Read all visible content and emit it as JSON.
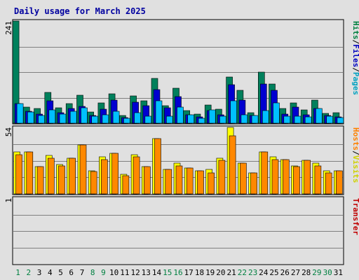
{
  "chart_data": {
    "type": "bar",
    "title": "Daily usage for March 2025",
    "days": [
      "1",
      "2",
      "3",
      "4",
      "5",
      "6",
      "7",
      "8",
      "9",
      "10",
      "11",
      "12",
      "13",
      "14",
      "15",
      "16",
      "17",
      "18",
      "19",
      "20",
      "21",
      "22",
      "23",
      "24",
      "25",
      "26",
      "27",
      "28",
      "29",
      "30",
      "31"
    ],
    "weekend_days": [
      "1",
      "2",
      "8",
      "9",
      "15",
      "16",
      "22",
      "23",
      "29",
      "30"
    ],
    "panels": [
      {
        "id": "pages",
        "ymax": 241,
        "ymax_label": "241",
        "side_label": [
          "Hits",
          "/",
          "Files",
          "/",
          "Pages"
        ],
        "side_colors": [
          "#008040",
          "#000000",
          "#0000c0",
          "#000000",
          "#00a0c0"
        ],
        "series": [
          {
            "key": "hits",
            "color": "#00805c",
            "values": [
              241,
              38,
              35,
              72,
              36,
              47,
              66,
              26,
              48,
              70,
              18,
              64,
              52,
              106,
              42,
              82,
              29,
              22,
              43,
              33,
              109,
              77,
              24,
              120,
              93,
              34,
              48,
              31,
              54,
              23,
              24
            ]
          },
          {
            "key": "files",
            "color": "#0000d0",
            "values": [
              47,
              28,
              22,
              52,
              24,
              35,
              40,
              18,
              33,
              54,
              13,
              50,
              42,
              80,
              36,
              62,
              19,
              15,
              30,
              20,
              90,
              55,
              18,
              93,
              78,
              21,
              38,
              20,
              34,
              18,
              15
            ]
          },
          {
            "key": "pages",
            "color": "#00c0ff",
            "values": [
              47,
              26,
              18,
              31,
              22,
              28,
              37,
              17,
              20,
              28,
              12,
              25,
              17,
              53,
              16,
              38,
              19,
              12,
              32,
              16,
              53,
              20,
              18,
              30,
              48,
              17,
              16,
              15,
              35,
              17,
              13
            ]
          }
        ]
      },
      {
        "id": "visits",
        "ymax": 54,
        "ymax_label": "54",
        "side_label": [
          "Hosts",
          "/",
          "Visits"
        ],
        "side_colors": [
          "#ff8000",
          "#000000",
          "#d0d000"
        ],
        "series": [
          {
            "key": "visits",
            "color": "#ffff00",
            "values": [
              34,
              34,
              22,
              31,
              24,
              29,
              40,
              19,
              30,
              33,
              16,
              32,
              22,
              45,
              20,
              25,
              21,
              19,
              20,
              29,
              54,
              25,
              17,
              34,
              30,
              28,
              23,
              27,
              25,
              19,
              19
            ]
          },
          {
            "key": "hosts",
            "color": "#ff8800",
            "values": [
              32,
              34,
              22,
              29,
              23,
              29,
              40,
              18,
              28,
              33,
              15,
              30,
              22,
              45,
              20,
              23,
              21,
              19,
              17,
              27,
              47,
              25,
              17,
              34,
              28,
              28,
              22,
              27,
              23,
              17,
              19
            ]
          }
        ]
      },
      {
        "id": "transfer",
        "ymax": 1,
        "ymax_label": "1",
        "side_label": [
          "Transfer"
        ],
        "side_colors": [
          "#c00000"
        ],
        "series": [
          {
            "key": "transfer",
            "color": "#c00000",
            "values": [
              0,
              0,
              0,
              0,
              0,
              0,
              0,
              0,
              0,
              0,
              0,
              0,
              0,
              0,
              0,
              0,
              0,
              0,
              0,
              0,
              0,
              0,
              0,
              0,
              0,
              0,
              0,
              0,
              0,
              0,
              0
            ]
          }
        ]
      }
    ],
    "colors": {
      "background": "#e0e0e0",
      "plot_background": "#e0e0e0",
      "grid": "#808080",
      "weekday_label": "#000000",
      "weekend_label": "#008040",
      "title": "#0000a0"
    }
  }
}
